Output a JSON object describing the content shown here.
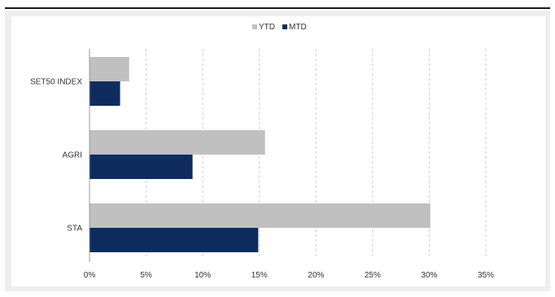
{
  "chart_data": {
    "type": "bar",
    "orientation": "horizontal",
    "categories": [
      "SET50 INDEX",
      "AGRI",
      "STA"
    ],
    "series": [
      {
        "name": "YTD",
        "color": "#c0c0c0",
        "values": [
          3.5,
          15.5,
          30.1
        ]
      },
      {
        "name": "MTD",
        "color": "#0e2c5e",
        "values": [
          2.7,
          9.1,
          14.9
        ]
      }
    ],
    "x_ticks": [
      "0%",
      "5%",
      "10%",
      "15%",
      "20%",
      "25%",
      "30%",
      "35%"
    ],
    "xlim": [
      0,
      35
    ],
    "grid": "vertical-dashed",
    "legend_position": "top",
    "title": "",
    "xlabel": "",
    "ylabel": ""
  }
}
